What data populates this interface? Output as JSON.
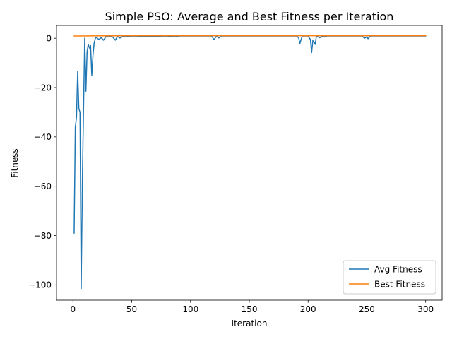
{
  "chart_data": {
    "type": "line",
    "title": "Simple PSO: Average and Best Fitness per Iteration",
    "xlabel": "Iteration",
    "ylabel": "Fitness",
    "xlim": [
      -14,
      314
    ],
    "ylim": [
      -106.2,
      5.2
    ],
    "xticks": [
      0,
      50,
      100,
      150,
      200,
      250,
      300
    ],
    "yticks": [
      0,
      -20,
      -40,
      -60,
      -80,
      -100
    ],
    "xtick_labels": [
      "0",
      "50",
      "100",
      "150",
      "200",
      "250",
      "300"
    ],
    "ytick_labels": [
      "0",
      "−20",
      "−40",
      "−60",
      "−80",
      "−100"
    ],
    "grid": false,
    "legend_position": "lower right",
    "series": [
      {
        "name": "Avg Fitness",
        "color": "#1f77b4",
        "points": [
          [
            1,
            -79
          ],
          [
            2,
            -36
          ],
          [
            3,
            -32
          ],
          [
            4,
            -13.5
          ],
          [
            5,
            -28.5
          ],
          [
            6,
            -30
          ],
          [
            7,
            -101.5
          ],
          [
            8,
            -58
          ],
          [
            9,
            -28
          ],
          [
            10,
            0
          ],
          [
            11,
            -21.5
          ],
          [
            12,
            -5.5
          ],
          [
            13,
            -2.5
          ],
          [
            14,
            -4
          ],
          [
            15,
            -3
          ],
          [
            16,
            -15
          ],
          [
            17,
            -7
          ],
          [
            18,
            -2
          ],
          [
            19,
            0
          ],
          [
            20,
            0.3
          ],
          [
            22,
            -0.5
          ],
          [
            24,
            0.2
          ],
          [
            26,
            -0.8
          ],
          [
            28,
            0.6
          ],
          [
            30,
            0.5
          ],
          [
            32,
            0.8
          ],
          [
            34,
            0.4
          ],
          [
            36,
            -0.8
          ],
          [
            38,
            0.7
          ],
          [
            40,
            0.1
          ],
          [
            42,
            0.6
          ],
          [
            45,
            0.7
          ],
          [
            50,
            0.9
          ],
          [
            60,
            0.8
          ],
          [
            70,
            0.8
          ],
          [
            80,
            0.9
          ],
          [
            86,
            0.5
          ],
          [
            90,
            0.9
          ],
          [
            100,
            0.9
          ],
          [
            110,
            0.9
          ],
          [
            118,
            0.9
          ],
          [
            120,
            -0.6
          ],
          [
            122,
            0.8
          ],
          [
            124,
            0.1
          ],
          [
            126,
            0.9
          ],
          [
            140,
            0.9
          ],
          [
            160,
            0.9
          ],
          [
            180,
            0.9
          ],
          [
            190,
            0.9
          ],
          [
            192,
            0.2
          ],
          [
            193,
            -2.2
          ],
          [
            195,
            0.9
          ],
          [
            200,
            0.9
          ],
          [
            202,
            -0.5
          ],
          [
            203,
            -5.8
          ],
          [
            204,
            -1
          ],
          [
            205,
            -1.5
          ],
          [
            206,
            -2.5
          ],
          [
            207,
            0.6
          ],
          [
            208,
            0.8
          ],
          [
            210,
            0.2
          ],
          [
            212,
            0.9
          ],
          [
            214,
            0.5
          ],
          [
            216,
            0.9
          ],
          [
            230,
            0.9
          ],
          [
            240,
            0.9
          ],
          [
            246,
            0.9
          ],
          [
            248,
            0.0
          ],
          [
            250,
            0.6
          ],
          [
            251,
            -0.2
          ],
          [
            253,
            0.9
          ],
          [
            270,
            0.9
          ],
          [
            280,
            0.9
          ],
          [
            290,
            0.9
          ],
          [
            300,
            0.9
          ]
        ]
      },
      {
        "name": "Best Fitness",
        "color": "#ff7f0e",
        "points": [
          [
            1,
            0.9
          ],
          [
            50,
            1.0
          ],
          [
            100,
            1.0
          ],
          [
            150,
            1.0
          ],
          [
            200,
            1.0
          ],
          [
            250,
            1.0
          ],
          [
            300,
            1.0
          ]
        ]
      }
    ]
  }
}
